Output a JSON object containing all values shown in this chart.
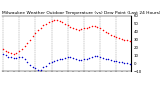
{
  "title": "Milwaukee Weather Outdoor Temperature (vs) Dew Point (Last 24 Hours)",
  "bg_color": "#ffffff",
  "plot_bg": "#ffffff",
  "grid_color": "#888888",
  "temp_color": "#ff0000",
  "dew_color": "#0000cc",
  "marker_size": 1.2,
  "ylim": [
    -10,
    60
  ],
  "yticks": [
    -10,
    0,
    10,
    20,
    30,
    40,
    50,
    60
  ],
  "num_points": 48,
  "temp_values": [
    18,
    16,
    14,
    13,
    12,
    13,
    15,
    18,
    22,
    26,
    30,
    35,
    38,
    42,
    45,
    48,
    50,
    52,
    53,
    54,
    54,
    53,
    52,
    50,
    48,
    46,
    44,
    43,
    42,
    43,
    44,
    45,
    46,
    47,
    47,
    46,
    44,
    42,
    40,
    38,
    36,
    34,
    33,
    32,
    31,
    30,
    29,
    28
  ],
  "dew_values": [
    12,
    10,
    8,
    8,
    7,
    7,
    8,
    8,
    5,
    2,
    -2,
    -5,
    -6,
    -8,
    -8,
    -5,
    -3,
    0,
    2,
    3,
    4,
    5,
    6,
    7,
    8,
    8,
    7,
    5,
    4,
    4,
    5,
    6,
    7,
    8,
    9,
    9,
    8,
    7,
    6,
    5,
    4,
    3,
    3,
    2,
    2,
    1,
    0,
    -1
  ],
  "xtick_interval": 6,
  "xlim": [
    -0.5,
    47.5
  ],
  "title_fontsize": 3.2,
  "tick_fontsize": 2.8,
  "border_color": "#000000",
  "border_lw": 0.8,
  "grid_lw": 0.3,
  "grid_ls": "--"
}
